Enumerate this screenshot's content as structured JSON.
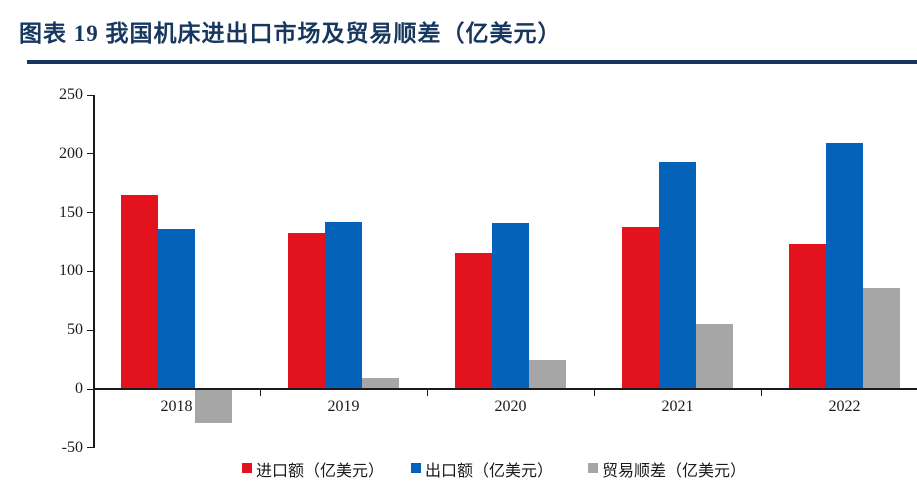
{
  "header": {
    "title": "图表 19  我国机床进出口市场及贸易顺差（亿美元）",
    "accent_color": "#17375E"
  },
  "chart_data": {
    "type": "bar",
    "title": "我国机床进出口市场及贸易顺差（亿美元）",
    "categories": [
      "2018",
      "2019",
      "2020",
      "2021",
      "2022"
    ],
    "series": [
      {
        "key": "import",
        "name": "进口额（亿美元）",
        "color": "#E2131D",
        "values": [
          165,
          133,
          116,
          138,
          123
        ]
      },
      {
        "key": "export",
        "name": "出口额（亿美元）",
        "color": "#0562B9",
        "values": [
          136,
          142,
          141,
          193,
          209
        ]
      },
      {
        "key": "surplus",
        "name": "贸易顺差（亿美元）",
        "color": "#A6A6A6",
        "values": [
          -29,
          9,
          25,
          55,
          86
        ]
      }
    ],
    "ylim": [
      -50,
      250
    ],
    "yticks": [
      250,
      200,
      150,
      100,
      50,
      0,
      -50
    ],
    "xlabel": "",
    "ylabel": "",
    "grid": false,
    "legend_position": "bottom",
    "axis_color": "#1a1a1a"
  }
}
